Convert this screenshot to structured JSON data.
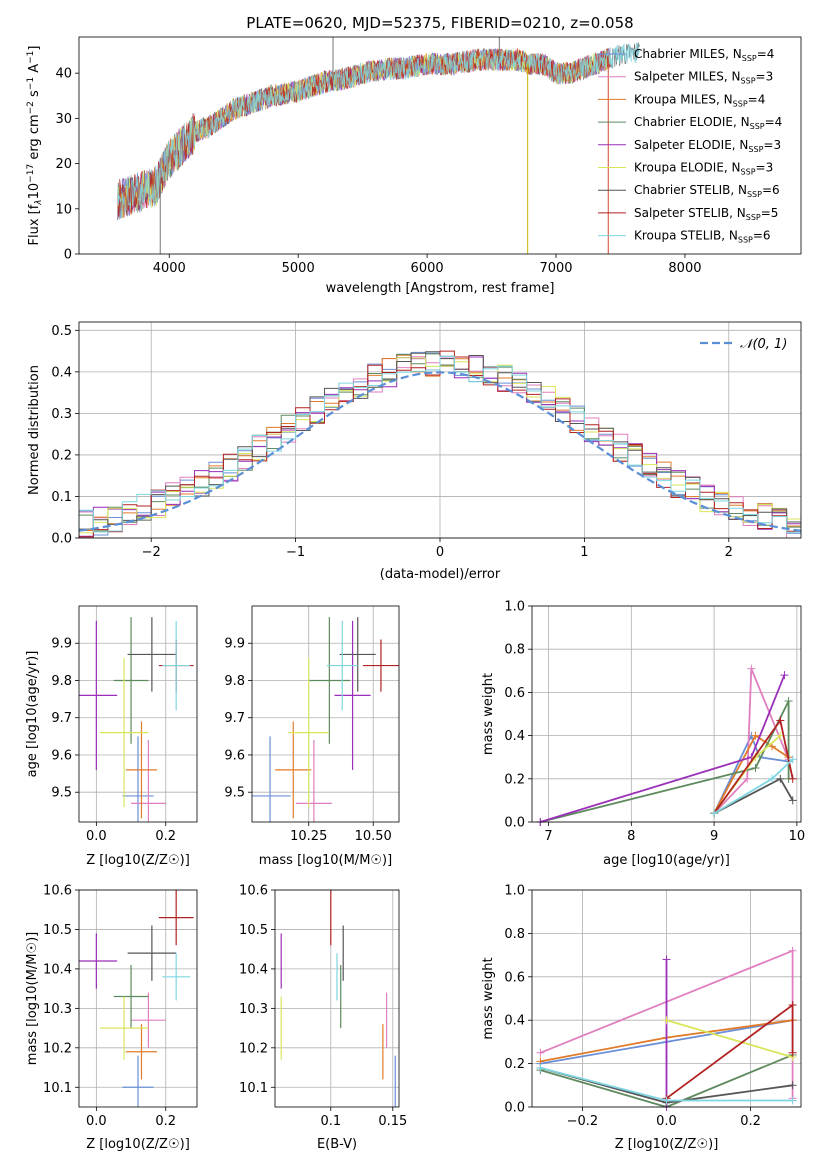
{
  "chart_data": [
    {
      "id": "spectrum",
      "type": "line",
      "title": "PLATE=0620, MJD=52375, FIBERID=0210, z=0.058",
      "xlabel": "wavelength [Angstrom, rest frame]",
      "ylabel_parts": [
        "Flux [f",
        "λ",
        "10",
        "−17",
        " erg cm",
        "−2",
        " s",
        "−1",
        " A",
        "−1",
        "]"
      ],
      "xlim": [
        3300,
        8900
      ],
      "ylim": [
        0,
        48
      ],
      "xticks": [
        4000,
        5000,
        6000,
        7000,
        8000
      ],
      "yticks": [
        0,
        10,
        20,
        30,
        40
      ],
      "continuum": [
        [
          3600,
          12
        ],
        [
          3700,
          13
        ],
        [
          3800,
          14
        ],
        [
          3900,
          15
        ],
        [
          4000,
          21
        ],
        [
          4100,
          24
        ],
        [
          4200,
          27
        ],
        [
          4300,
          28
        ],
        [
          4400,
          30
        ],
        [
          4500,
          32
        ],
        [
          4600,
          33
        ],
        [
          4700,
          34
        ],
        [
          4800,
          35
        ],
        [
          4900,
          35.5
        ],
        [
          5000,
          36
        ],
        [
          5100,
          37
        ],
        [
          5200,
          38
        ],
        [
          5300,
          38.5
        ],
        [
          5400,
          39
        ],
        [
          5500,
          40
        ],
        [
          5600,
          40.5
        ],
        [
          5700,
          41
        ],
        [
          5800,
          41
        ],
        [
          5900,
          41.5
        ],
        [
          6000,
          42
        ],
        [
          6100,
          42
        ],
        [
          6200,
          42
        ],
        [
          6300,
          42.5
        ],
        [
          6400,
          43
        ],
        [
          6500,
          43
        ],
        [
          6600,
          43
        ],
        [
          6700,
          43
        ],
        [
          6800,
          42
        ],
        [
          6900,
          42
        ],
        [
          7000,
          40
        ],
        [
          7100,
          40
        ],
        [
          7200,
          41
        ],
        [
          7300,
          42
        ],
        [
          7400,
          43
        ],
        [
          7500,
          44
        ],
        [
          7600,
          44.5
        ],
        [
          7650,
          45
        ]
      ],
      "spikes": [
        {
          "x": 3930,
          "y": 0
        },
        {
          "x": 5270,
          "y": 48
        },
        {
          "x": 6560,
          "y": 48
        },
        {
          "x": 6780,
          "y": 0
        },
        {
          "x": 7405,
          "y": 0
        }
      ],
      "legend": [
        {
          "name": "Chabrier MILES, N",
          "nssp": "4",
          "color": "#6a8fd6"
        },
        {
          "name": "Salpeter MILES, N",
          "nssp": "3",
          "color": "#e07fbf"
        },
        {
          "name": "Kroupa MILES, N",
          "nssp": "4",
          "color": "#e07b2a"
        },
        {
          "name": "Chabrier ELODIE, N",
          "nssp": "4",
          "color": "#5e8a5e"
        },
        {
          "name": "Salpeter ELODIE, N",
          "nssp": "3",
          "color": "#9a2fb8"
        },
        {
          "name": "Kroupa ELODIE, N",
          "nssp": "3",
          "color": "#d9e65a"
        },
        {
          "name": "Chabrier STELIB, N",
          "nssp": "6",
          "color": "#555555"
        },
        {
          "name": "Salpeter STELIB, N",
          "nssp": "5",
          "color": "#b22222"
        },
        {
          "name": "Kroupa STELIB, N",
          "nssp": "6",
          "color": "#7fd6e0"
        }
      ],
      "nssp_sub": "SSP"
    },
    {
      "id": "residuals",
      "type": "histogram",
      "xlabel": "(data-model)/error",
      "ylabel": "Normed distribution",
      "xlim": [
        -2.5,
        2.5
      ],
      "ylim": [
        0,
        0.52
      ],
      "xticks": [
        -2,
        -1,
        0,
        1,
        2
      ],
      "yticks": [
        0.0,
        0.1,
        0.2,
        0.3,
        0.4,
        0.5
      ],
      "bin_width": 0.1,
      "legend": {
        "label": "𝒩(0, 1)",
        "color": "#5b8fd6"
      }
    },
    {
      "id": "age_vs_Z",
      "type": "errorbar",
      "xlabel": "Z [log10(Z/Z☉)]",
      "ylabel": "age [log10(age/yr)]",
      "xlim": [
        -0.05,
        0.29
      ],
      "ylim": [
        9.42,
        10.0
      ],
      "xticks": [
        0.0,
        0.2
      ],
      "yticks": [
        9.5,
        9.6,
        9.7,
        9.8,
        9.9
      ]
    },
    {
      "id": "age_vs_mass",
      "type": "errorbar",
      "xlabel": "mass [log10(M/M☉)]",
      "ylabel": "",
      "xlim": [
        10.03,
        10.6
      ],
      "ylim": [
        9.42,
        10.0
      ],
      "xticks": [
        10.25,
        10.5
      ],
      "yticks": [
        9.5,
        9.6,
        9.7,
        9.8,
        9.9
      ]
    },
    {
      "id": "weight_vs_age",
      "type": "line",
      "xlabel": "age [log10(age/yr)]",
      "ylabel": "mass weight",
      "xlim": [
        6.8,
        10.05
      ],
      "ylim": [
        0,
        1.0
      ],
      "xticks": [
        7,
        8,
        9,
        10
      ],
      "yticks": [
        0.0,
        0.2,
        0.4,
        0.6,
        0.8,
        1.0
      ]
    },
    {
      "id": "mass_vs_Z",
      "type": "errorbar",
      "xlabel": "Z [log10(Z/Z☉)]",
      "ylabel": "mass [log10(M/M☉)]",
      "xlim": [
        -0.05,
        0.29
      ],
      "ylim": [
        10.05,
        10.6
      ],
      "xticks": [
        0.0,
        0.2
      ],
      "yticks": [
        10.1,
        10.2,
        10.3,
        10.4,
        10.5,
        10.6
      ]
    },
    {
      "id": "mass_vs_ebv",
      "type": "errorbar",
      "xlabel": "E(B-V)",
      "ylabel": "",
      "xlim": [
        0.055,
        0.155
      ],
      "ylim": [
        10.05,
        10.6
      ],
      "xticks": [
        0.1,
        0.15
      ],
      "yticks": [
        10.1,
        10.2,
        10.3,
        10.4,
        10.5,
        10.6
      ]
    },
    {
      "id": "weight_vs_Z",
      "type": "line",
      "xlabel": "Z [log10(Z/Z☉)]",
      "ylabel": "mass weight",
      "xlim": [
        -0.32,
        0.32
      ],
      "ylim": [
        0,
        1.0
      ],
      "xticks": [
        -0.2,
        0.0,
        0.2
      ],
      "yticks": [
        0.0,
        0.2,
        0.4,
        0.6,
        0.8,
        1.0
      ]
    }
  ],
  "models": [
    {
      "color": "#6a8fd6",
      "Z": 0.12,
      "Zerr": 0.045,
      "age": 9.49,
      "ageerr": 0.16,
      "mass": 10.1,
      "masserr": 0.08,
      "ebv": 0.152,
      "ebverr": 0.08,
      "wa": [
        [
          9.0,
          0.04
        ],
        [
          9.45,
          0.4
        ],
        [
          9.55,
          0.3
        ],
        [
          9.9,
          0.28
        ]
      ],
      "wz": [
        [
          -0.3,
          0.2
        ],
        [
          0.0,
          0.3
        ],
        [
          0.3,
          0.4
        ]
      ]
    },
    {
      "color": "#e07fbf",
      "Z": 0.15,
      "Zerr": 0.05,
      "age": 9.47,
      "ageerr": 0.17,
      "mass": 10.27,
      "masserr": 0.07,
      "ebv": 0.145,
      "ebverr": 0.08,
      "wa": [
        [
          9.0,
          0.04
        ],
        [
          9.4,
          0.2
        ],
        [
          9.45,
          0.71
        ],
        [
          9.9,
          0.29
        ]
      ],
      "wz": [
        [
          -0.3,
          0.25
        ],
        [
          0.3,
          0.72
        ],
        [
          0.3,
          0.04
        ]
      ]
    },
    {
      "color": "#e07b2a",
      "Z": 0.13,
      "Zerr": 0.045,
      "age": 9.56,
      "ageerr": 0.13,
      "mass": 10.19,
      "masserr": 0.07,
      "ebv": 0.142,
      "ebverr": 0.09,
      "wa": [
        [
          9.0,
          0.04
        ],
        [
          9.5,
          0.4
        ],
        [
          9.7,
          0.35
        ],
        [
          9.9,
          0.3
        ]
      ],
      "wz": [
        [
          -0.3,
          0.21
        ],
        [
          0.0,
          0.32
        ],
        [
          0.3,
          0.4
        ]
      ]
    },
    {
      "color": "#5e8a5e",
      "Z": 0.1,
      "Zerr": 0.05,
      "age": 9.8,
      "ageerr": 0.17,
      "mass": 10.33,
      "masserr": 0.08,
      "ebv": 0.108,
      "ebverr": 0.04,
      "wa": [
        [
          6.9,
          0.0
        ],
        [
          9.5,
          0.25
        ],
        [
          9.9,
          0.56
        ],
        [
          9.9,
          0.2
        ]
      ],
      "wz": [
        [
          -0.3,
          0.17
        ],
        [
          0.0,
          0.0
        ],
        [
          0.3,
          0.24
        ]
      ]
    },
    {
      "color": "#9a2fb8",
      "Z": 0.0,
      "Zerr": 0.06,
      "age": 9.76,
      "ageerr": 0.2,
      "mass": 10.42,
      "masserr": 0.07,
      "ebv": 0.06,
      "ebverr": 0.03,
      "wa": [
        [
          6.9,
          0.0
        ],
        [
          9.45,
          0.3
        ],
        [
          9.85,
          0.68
        ]
      ],
      "wz": [
        [
          0.0,
          0.0
        ],
        [
          0.0,
          0.68
        ]
      ]
    },
    {
      "color": "#d9e65a",
      "Z": 0.08,
      "Zerr": 0.07,
      "age": 9.66,
      "ageerr": 0.2,
      "mass": 10.25,
      "masserr": 0.08,
      "ebv": 0.06,
      "ebverr": 0.05,
      "wa": [
        [
          9.0,
          0.04
        ],
        [
          9.5,
          0.3
        ],
        [
          9.8,
          0.4
        ]
      ],
      "wz": [
        [
          0.0,
          0.4
        ],
        [
          0.3,
          0.23
        ]
      ]
    },
    {
      "color": "#555555",
      "Z": 0.16,
      "Zerr": 0.07,
      "age": 9.87,
      "ageerr": 0.1,
      "mass": 10.44,
      "masserr": 0.07,
      "ebv": 0.11,
      "ebverr": 0.06,
      "wa": [
        [
          9.0,
          0.04
        ],
        [
          9.8,
          0.2
        ],
        [
          9.95,
          0.1
        ]
      ],
      "wz": [
        [
          -0.3,
          0.18
        ],
        [
          0.0,
          0.02
        ],
        [
          0.3,
          0.1
        ]
      ]
    },
    {
      "color": "#b22222",
      "Z": 0.23,
      "Zerr": 0.05,
      "age": 9.84,
      "ageerr": 0.07,
      "mass": 10.53,
      "masserr": 0.07,
      "ebv": 0.1,
      "ebverr": 0.05,
      "wa": [
        [
          9.0,
          0.04
        ],
        [
          9.8,
          0.47
        ],
        [
          9.95,
          0.2
        ]
      ],
      "wz": [
        [
          0.0,
          0.04
        ],
        [
          0.3,
          0.47
        ],
        [
          0.3,
          0.25
        ]
      ]
    },
    {
      "color": "#7fd6e0",
      "Z": 0.23,
      "Zerr": 0.04,
      "age": 9.84,
      "ageerr": 0.12,
      "mass": 10.38,
      "masserr": 0.06,
      "ebv": 0.105,
      "ebverr": 0.04,
      "wa": [
        [
          9.0,
          0.04
        ],
        [
          9.7,
          0.2
        ],
        [
          9.95,
          0.29
        ]
      ],
      "wz": [
        [
          -0.3,
          0.18
        ],
        [
          0.0,
          0.03
        ],
        [
          0.3,
          0.03
        ]
      ]
    }
  ]
}
